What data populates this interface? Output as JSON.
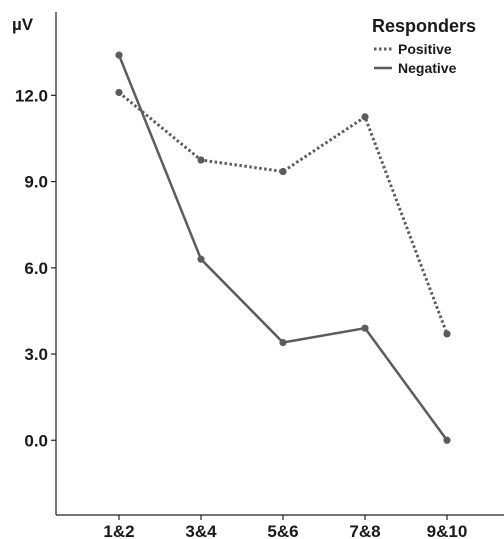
{
  "chart_data": {
    "type": "line",
    "title": "",
    "xlabel": "",
    "ylabel": "µV",
    "categories": [
      "1&2",
      "3&4",
      "5&6",
      "7&8",
      "9&10"
    ],
    "y_ticks": [
      "0.0",
      "3.0",
      "6.0",
      "9.0",
      "12.0"
    ],
    "y_tick_values": [
      0,
      3,
      6,
      9,
      12
    ],
    "ylim": [
      -2.6,
      14.9
    ],
    "grid": false,
    "legend": {
      "title": "Responders",
      "position": "top-right"
    },
    "series": [
      {
        "name": "Positive",
        "style": "dotted",
        "values": [
          12.1,
          9.75,
          9.35,
          11.25,
          3.7
        ]
      },
      {
        "name": "Negative",
        "style": "solid",
        "values": [
          13.4,
          6.3,
          3.4,
          3.9,
          0.0
        ]
      }
    ],
    "colors": {
      "line": "#5c5c5c",
      "axis": "#222222"
    }
  }
}
